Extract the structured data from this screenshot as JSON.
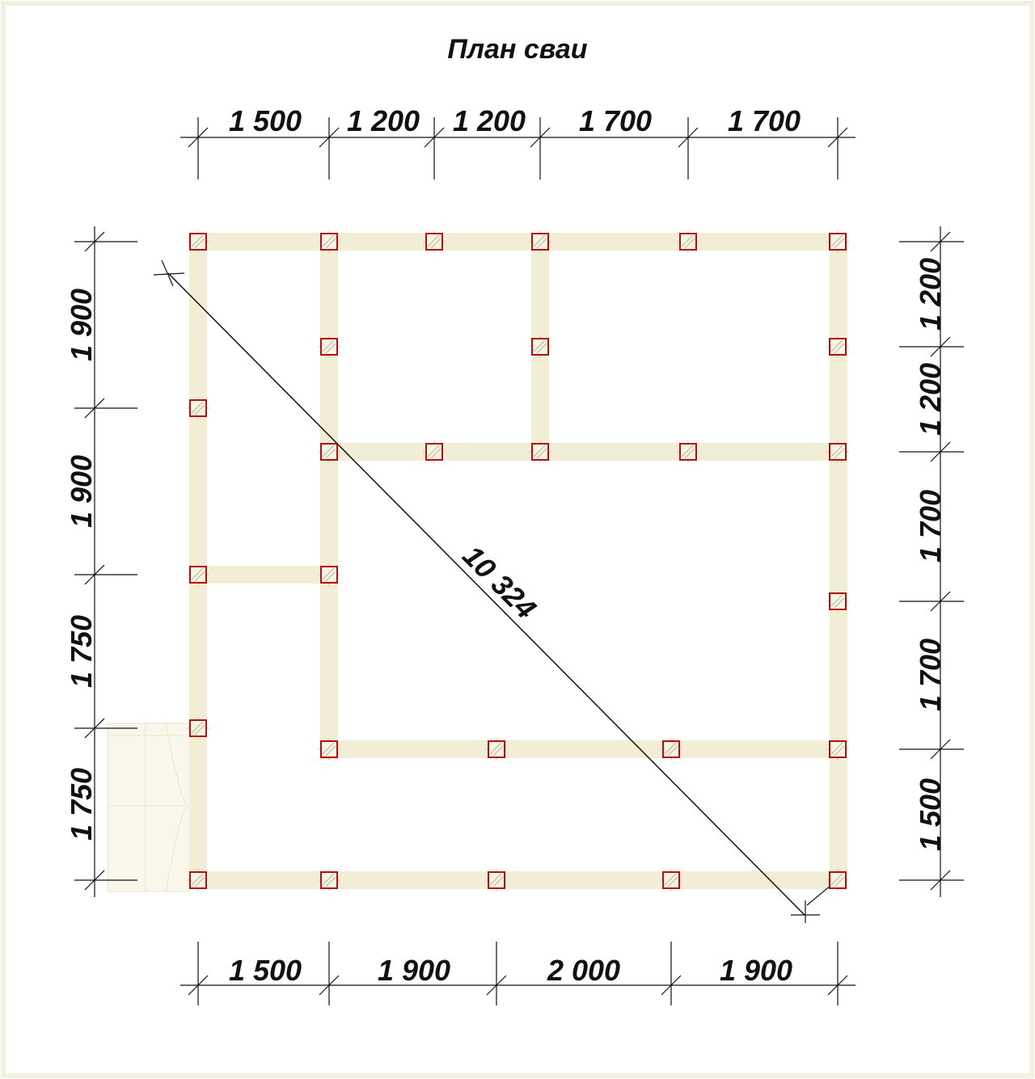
{
  "title": "План сваи",
  "top_dims": [
    "1 500",
    "1 200",
    "1 200",
    "1 700",
    "1 700"
  ],
  "bottom_dims": [
    "1 500",
    "1 900",
    "2 000",
    "1 900"
  ],
  "left_dims": [
    "1 900",
    "1 900",
    "1 750",
    "1 750"
  ],
  "right_dims": [
    "1 200",
    "1 200",
    "1 700",
    "1 700",
    "1 500"
  ],
  "diagonal_dim": "10 324",
  "colors": {
    "beam": "#f2eed6",
    "pile_border": "#b01010",
    "line": "#111111"
  }
}
